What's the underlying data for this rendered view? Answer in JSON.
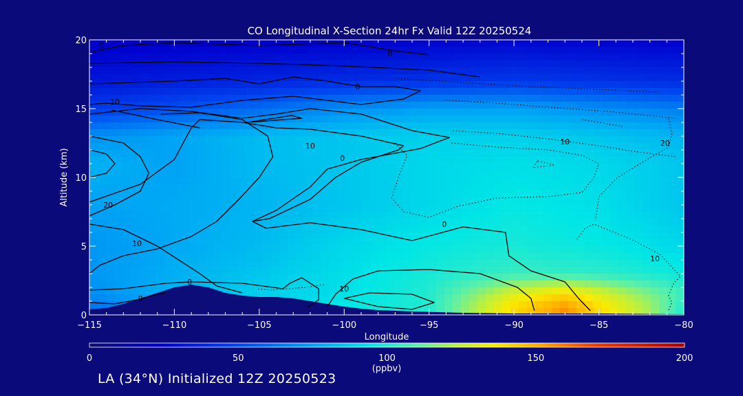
{
  "chart_data": {
    "type": "heatmap",
    "title": "CO Longitudinal X-Section 24hr  Fx Valid 12Z 20250524",
    "xlabel": "Longitude",
    "ylabel": "Altitude (km)",
    "xlim": [
      -115,
      -80
    ],
    "ylim": [
      0,
      20
    ],
    "x_ticks": [
      -115,
      -110,
      -105,
      -100,
      -95,
      -90,
      -85,
      -80
    ],
    "x_tick_labels": [
      "−115",
      "−110",
      "−105",
      "−100",
      "−95",
      "−90",
      "−85",
      "−80"
    ],
    "y_ticks": [
      0,
      5,
      10,
      15,
      20
    ],
    "colorbar": {
      "ticks": [
        0,
        50,
        100,
        150,
        200
      ],
      "unit_label": "(ppbv)",
      "range": [
        0,
        200
      ]
    },
    "field_ppbv": [
      {
        "alt_km": 0.5,
        "lon": [
          -115,
          -110,
          -105,
          -100,
          -95,
          -90,
          -87,
          -85,
          -82,
          -80
        ],
        "co": [
          60,
          75,
          85,
          95,
          100,
          140,
          155,
          140,
          120,
          100
        ]
      },
      {
        "alt_km": 1.5,
        "lon": [
          -115,
          -110,
          -105,
          -100,
          -95,
          -90,
          -87,
          -85,
          -80
        ],
        "co": [
          70,
          80,
          88,
          92,
          100,
          130,
          140,
          130,
          105
        ]
      },
      {
        "alt_km": 3,
        "lon": [
          -115,
          -105,
          -100,
          -95,
          -90,
          -85,
          -80
        ],
        "co": [
          72,
          85,
          92,
          98,
          104,
          102,
          96
        ]
      },
      {
        "alt_km": 5,
        "lon": [
          -115,
          -105,
          -100,
          -95,
          -90,
          -85,
          -80
        ],
        "co": [
          72,
          82,
          90,
          95,
          98,
          95,
          90
        ]
      },
      {
        "alt_km": 8,
        "lon": [
          -115,
          -105,
          -100,
          -95,
          -90,
          -85,
          -80
        ],
        "co": [
          75,
          80,
          85,
          90,
          95,
          92,
          85
        ]
      },
      {
        "alt_km": 11,
        "lon": [
          -115,
          -110,
          -105,
          -100,
          -95,
          -90,
          -85,
          -80
        ],
        "co": [
          80,
          75,
          82,
          85,
          90,
          92,
          90,
          85
        ]
      },
      {
        "alt_km": 13,
        "lon": [
          -115,
          -105,
          -100,
          -95,
          -90,
          -85,
          -80
        ],
        "co": [
          70,
          82,
          85,
          88,
          88,
          85,
          80
        ]
      },
      {
        "alt_km": 15,
        "lon": [
          -115,
          -105,
          -100,
          -95,
          -90,
          -85,
          -80
        ],
        "co": [
          45,
          60,
          70,
          75,
          75,
          70,
          65
        ]
      },
      {
        "alt_km": 17,
        "lon": [
          -115,
          -100,
          -90,
          -80
        ],
        "co": [
          32,
          40,
          45,
          40
        ]
      },
      {
        "alt_km": 20,
        "lon": [
          -115,
          -100,
          -90,
          -80
        ],
        "co": [
          22,
          24,
          26,
          24
        ]
      }
    ],
    "terrain_km": {
      "lon": [
        -115,
        -114,
        -113,
        -112,
        -111,
        -110,
        -109,
        -108,
        -107,
        -106,
        -105,
        -104,
        -103,
        -102,
        -101,
        -100,
        -99,
        -98,
        -96,
        -93,
        -90,
        -85,
        -80
      ],
      "alt": [
        0.4,
        0.5,
        0.8,
        1.2,
        1.6,
        2.0,
        2.2,
        2.0,
        1.6,
        1.4,
        1.3,
        1.3,
        1.2,
        1.0,
        0.8,
        0.6,
        0.45,
        0.35,
        0.25,
        0.15,
        0.1,
        0.1,
        0.05
      ]
    },
    "contour_labels": [
      {
        "text": "0",
        "lon": -114.3,
        "alt": 19.6
      },
      {
        "text": "0",
        "lon": -97.3,
        "alt": 19.0
      },
      {
        "text": "0",
        "lon": -99.2,
        "alt": 16.6
      },
      {
        "text": "10",
        "lon": -113.5,
        "alt": 15.5
      },
      {
        "text": "10",
        "lon": -102.0,
        "alt": 12.3
      },
      {
        "text": "0",
        "lon": -100.1,
        "alt": 11.4
      },
      {
        "text": "10",
        "lon": -87.0,
        "alt": 12.6
      },
      {
        "text": "20",
        "lon": -81.1,
        "alt": 12.5
      },
      {
        "text": "20",
        "lon": -113.9,
        "alt": 8.0
      },
      {
        "text": "10",
        "lon": -112.2,
        "alt": 5.2
      },
      {
        "text": "0",
        "lon": -94.1,
        "alt": 6.6
      },
      {
        "text": "10",
        "lon": -81.7,
        "alt": 4.1
      },
      {
        "text": "0",
        "lon": -109.1,
        "alt": 2.4
      },
      {
        "text": "0",
        "lon": -112.0,
        "alt": 1.2
      },
      {
        "text": "10",
        "lon": -100.0,
        "alt": 1.9
      }
    ],
    "contours_solid": [
      [
        [
          -115,
          18.3
        ],
        [
          -110,
          18.4
        ],
        [
          -105,
          18.3
        ],
        [
          -100,
          18.1
        ],
        [
          -95,
          17.8
        ],
        [
          -92,
          17.3
        ]
      ],
      [
        [
          -115,
          19.1
        ],
        [
          -113,
          19.6
        ],
        [
          -110,
          19.8
        ],
        [
          -105,
          19.6
        ],
        [
          -100,
          19.8
        ],
        [
          -97,
          19.2
        ],
        [
          -95,
          18.9
        ]
      ],
      [
        [
          -115,
          16.8
        ],
        [
          -110,
          17.0
        ],
        [
          -107,
          17.2
        ],
        [
          -105,
          16.8
        ],
        [
          -103,
          17.3
        ],
        [
          -101,
          17.0
        ],
        [
          -99,
          16.6
        ],
        [
          -97,
          16.6
        ],
        [
          -95.5,
          16.3
        ],
        [
          -96.5,
          15.7
        ],
        [
          -99,
          15.3
        ],
        [
          -101,
          15.6
        ],
        [
          -103,
          15.9
        ],
        [
          -106,
          15.6
        ],
        [
          -109,
          15.1
        ],
        [
          -112,
          15.2
        ],
        [
          -114,
          15.4
        ],
        [
          -115,
          15.3
        ]
      ],
      [
        [
          -115,
          14.6
        ],
        [
          -112,
          15.0
        ],
        [
          -109,
          14.8
        ],
        [
          -106,
          14.3
        ],
        [
          -104,
          14.6
        ],
        [
          -102,
          15.0
        ],
        [
          -99,
          14.6
        ],
        [
          -96,
          13.4
        ],
        [
          -93.8,
          12.9
        ],
        [
          -95.5,
          12.1
        ],
        [
          -99,
          11.3
        ],
        [
          -101,
          10.6
        ],
        [
          -102,
          9.3
        ],
        [
          -104,
          7.6
        ],
        [
          -105.4,
          6.8
        ],
        [
          -104.6,
          6.3
        ],
        [
          -102,
          6.7
        ],
        [
          -99,
          6.2
        ],
        [
          -96,
          5.4
        ],
        [
          -93,
          6.4
        ],
        [
          -90.5,
          6.0
        ],
        [
          -90.3,
          4.3
        ],
        [
          -89,
          3.2
        ],
        [
          -87,
          2.4
        ],
        [
          -86.2,
          1.2
        ],
        [
          -85.5,
          0.3
        ]
      ],
      [
        [
          -115,
          8.2
        ],
        [
          -112,
          9.5
        ],
        [
          -110,
          11.3
        ],
        [
          -109,
          13.6
        ],
        [
          -108.5,
          14.2
        ],
        [
          -106,
          14.0
        ],
        [
          -104,
          13.6
        ],
        [
          -102,
          13.5
        ],
        [
          -99,
          13.0
        ],
        [
          -96.5,
          12.3
        ],
        [
          -96.8,
          12.0
        ],
        [
          -99,
          11.1
        ],
        [
          -100.5,
          10.0
        ],
        [
          -102,
          8.4
        ],
        [
          -104.4,
          7.0
        ],
        [
          -105.4,
          6.8
        ]
      ],
      [
        [
          -115,
          13.0
        ],
        [
          -113,
          12.5
        ],
        [
          -112,
          11.5
        ],
        [
          -111.5,
          10.3
        ],
        [
          -112,
          9.0
        ],
        [
          -113.5,
          8.0
        ],
        [
          -115,
          7.2
        ]
      ],
      [
        [
          -115,
          12.0
        ],
        [
          -114,
          11.7
        ],
        [
          -113.5,
          11.0
        ],
        [
          -114,
          10.3
        ],
        [
          -115,
          10.0
        ]
      ],
      [
        [
          -110.8,
          14.6
        ],
        [
          -108.5,
          14.7
        ],
        [
          -106,
          14.2
        ],
        [
          -104.5,
          13.0
        ],
        [
          -104.2,
          11.5
        ],
        [
          -105,
          10.0
        ],
        [
          -106.2,
          8.4
        ],
        [
          -107.5,
          6.8
        ],
        [
          -109,
          5.7
        ],
        [
          -111,
          4.8
        ],
        [
          -113,
          4.3
        ],
        [
          -114.4,
          3.6
        ],
        [
          -115,
          3.0
        ]
      ],
      [
        [
          -115,
          6.6
        ],
        [
          -113,
          6.2
        ],
        [
          -111,
          5.0
        ],
        [
          -108.5,
          3.0
        ],
        [
          -107.5,
          2.1
        ],
        [
          -106,
          1.6
        ]
      ],
      [
        [
          -115,
          1.8
        ],
        [
          -113,
          1.9
        ],
        [
          -110.5,
          2.3
        ],
        [
          -109,
          2.4
        ],
        [
          -106,
          2.3
        ],
        [
          -103.6,
          1.9
        ],
        [
          -103.2,
          2.3
        ],
        [
          -102.5,
          2.7
        ],
        [
          -101.5,
          1.9
        ],
        [
          -101.5,
          1.1
        ],
        [
          -102.2,
          0.5
        ]
      ],
      [
        [
          -115,
          0.9
        ],
        [
          -113.5,
          0.8
        ],
        [
          -112.2,
          1.1
        ],
        [
          -111,
          1.5
        ],
        [
          -110.5,
          1.6
        ]
      ],
      [
        [
          -101,
          0.6
        ],
        [
          -100.5,
          1.5
        ],
        [
          -99.5,
          2.6
        ],
        [
          -98,
          3.2
        ],
        [
          -95,
          3.3
        ],
        [
          -92,
          3.0
        ],
        [
          -89.8,
          2.0
        ],
        [
          -89,
          1.2
        ],
        [
          -88.8,
          0.3
        ]
      ],
      [
        [
          -100,
          1.2
        ],
        [
          -98,
          0.6
        ],
        [
          -96,
          0.4
        ],
        [
          -94.7,
          0.9
        ],
        [
          -96,
          1.5
        ],
        [
          -98.5,
          1.6
        ],
        [
          -100,
          1.2
        ]
      ],
      [
        [
          -113.7,
          14.9
        ],
        [
          -111,
          14.2
        ],
        [
          -108.5,
          13.6
        ]
      ],
      [
        [
          -105.7,
          14.0
        ],
        [
          -103.1,
          14.5
        ],
        [
          -102.5,
          14.3
        ],
        [
          -105.7,
          14.0
        ]
      ]
    ],
    "contours_dotted": [
      [
        [
          -97,
          17.2
        ],
        [
          -93,
          16.9
        ],
        [
          -89,
          16.6
        ],
        [
          -85,
          16.4
        ],
        [
          -81.5,
          16.2
        ]
      ],
      [
        [
          -94,
          15.6
        ],
        [
          -91,
          15.4
        ],
        [
          -88,
          15.1
        ],
        [
          -84.5,
          14.8
        ],
        [
          -80.5,
          14.3
        ]
      ],
      [
        [
          -93.6,
          13.4
        ],
        [
          -91,
          13.2
        ],
        [
          -88,
          12.8
        ],
        [
          -85,
          12.3
        ],
        [
          -83,
          11.9
        ],
        [
          -80.5,
          11.5
        ]
      ],
      [
        [
          -97,
          12.5
        ],
        [
          -96.3,
          11.6
        ],
        [
          -96.8,
          10.0
        ],
        [
          -97.2,
          8.5
        ],
        [
          -96.5,
          7.5
        ],
        [
          -95,
          7.1
        ],
        [
          -93.3,
          7.9
        ],
        [
          -91,
          8.5
        ],
        [
          -88,
          8.6
        ],
        [
          -86,
          8.9
        ],
        [
          -85.3,
          10.0
        ],
        [
          -85,
          11.0
        ],
        [
          -86,
          11.6
        ],
        [
          -88,
          12.0
        ],
        [
          -91,
          12.2
        ],
        [
          -93.7,
          12.5
        ]
      ],
      [
        [
          -88.6,
          11.2
        ],
        [
          -87.6,
          10.9
        ],
        [
          -88.9,
          10.7
        ],
        [
          -88.6,
          11.2
        ]
      ],
      [
        [
          -86.3,
          5.5
        ],
        [
          -85.8,
          6.3
        ],
        [
          -85.3,
          6.6
        ],
        [
          -84.3,
          6.1
        ],
        [
          -83.1,
          5.5
        ],
        [
          -81.4,
          4.4
        ],
        [
          -80.2,
          2.8
        ],
        [
          -80.6,
          2.3
        ],
        [
          -80.9,
          1.4
        ],
        [
          -80.7,
          0.9
        ],
        [
          -80.9,
          0.3
        ]
      ],
      [
        [
          -80.9,
          14.3
        ],
        [
          -80.7,
          13.2
        ],
        [
          -80.9,
          12.2
        ],
        [
          -82.3,
          11.2
        ],
        [
          -83.9,
          10.0
        ],
        [
          -85,
          8.6
        ],
        [
          -85.2,
          6.9
        ]
      ],
      [
        [
          -101.2,
          2.2
        ],
        [
          -102.3,
          2.0
        ],
        [
          -103.3,
          1.9
        ],
        [
          -104.3,
          1.8
        ],
        [
          -105.1,
          1.9
        ]
      ],
      [
        [
          -86,
          14.2
        ],
        [
          -85,
          14.0
        ],
        [
          -83.6,
          13.7
        ]
      ]
    ]
  },
  "caption": "LA (34°N) Initialized 12Z 20250523",
  "colors": {
    "background": "#0a0a7a",
    "foreground": "#ffffff",
    "terrain": "#0d0d7a",
    "contour": "#000000"
  }
}
